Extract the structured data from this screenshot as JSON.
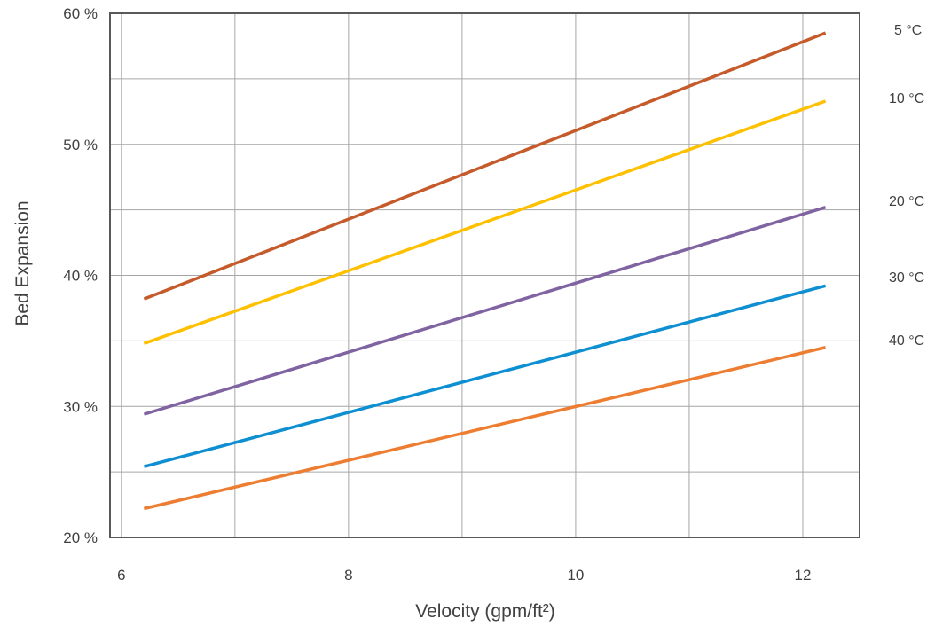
{
  "chart_data": {
    "type": "line",
    "title": "",
    "xlabel": "Velocity (gpm/ft²)",
    "ylabel": "Bed Expansion",
    "xlim": [
      5.9,
      12.5
    ],
    "ylim": [
      20,
      60
    ],
    "x_ticks": [
      6,
      8,
      10,
      12
    ],
    "x_tick_labels": [
      "6",
      "8",
      "10",
      "12"
    ],
    "y_ticks": [
      20,
      30,
      40,
      50,
      60
    ],
    "y_tick_labels": [
      "20 %",
      "30 %",
      "40 %",
      "50 %",
      "60 %"
    ],
    "grid": true,
    "legend": "right",
    "series": [
      {
        "name": "5 °C",
        "color": "#C55A2B",
        "x": [
          6.2,
          12.2
        ],
        "y": [
          38.2,
          58.5
        ]
      },
      {
        "name": "10 °C",
        "color": "#FFC000",
        "x": [
          6.2,
          12.2
        ],
        "y": [
          34.8,
          53.3
        ]
      },
      {
        "name": "20 °C",
        "color": "#8064A2",
        "x": [
          6.2,
          12.2
        ],
        "y": [
          29.4,
          45.2
        ]
      },
      {
        "name": "30 °C",
        "color": "#0E8FD1",
        "x": [
          6.2,
          12.2
        ],
        "y": [
          25.4,
          39.2
        ]
      },
      {
        "name": "40 °C",
        "color": "#ED7D31",
        "x": [
          6.2,
          12.2
        ],
        "y": [
          22.2,
          34.5
        ]
      }
    ]
  }
}
